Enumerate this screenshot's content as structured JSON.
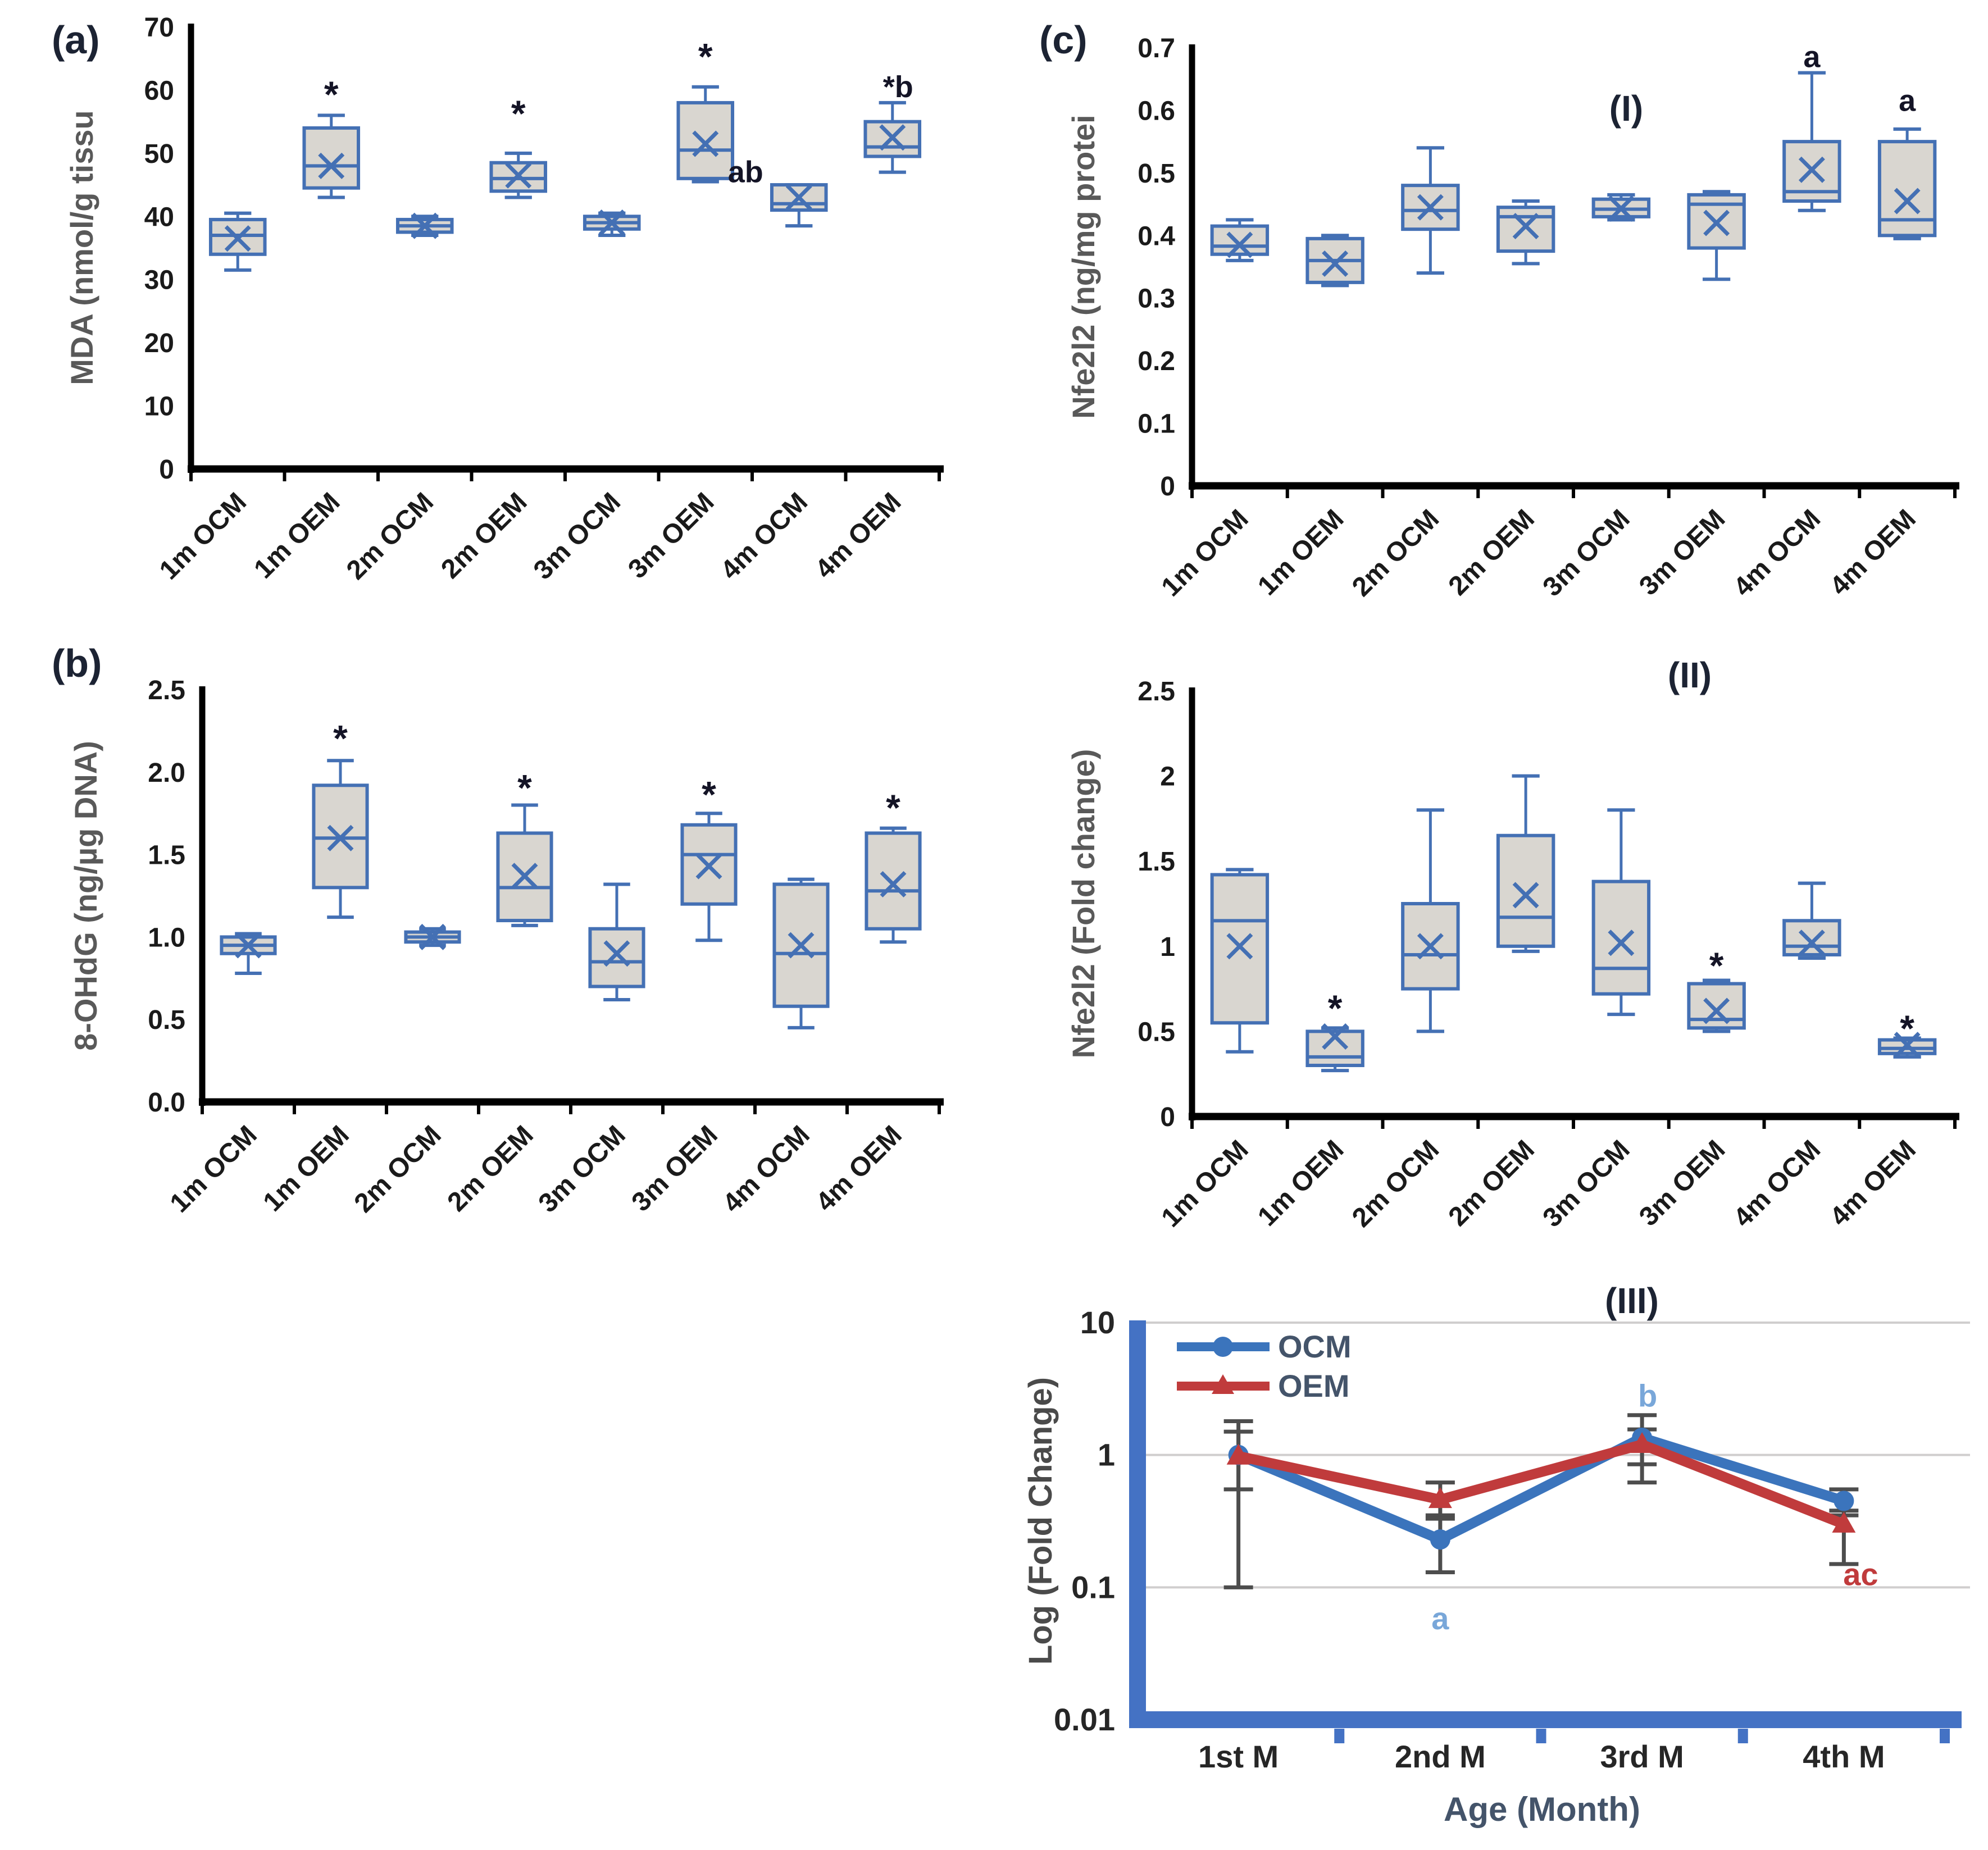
{
  "figure_title": "Oxidative stress and Nfe2l2 box plot figure",
  "colors": {
    "box_border": "#4470b4",
    "box_fill": "#d9d6d0",
    "axis": "#000000",
    "tick_text": "#1a1a1a",
    "axis_title": "#595959",
    "star": "#141426",
    "panel_letter": "#1c2333",
    "grid": "#d0cece",
    "log_axis": "#4472c4",
    "log_ylabel": "#4a4a4a",
    "error_bar": "#4d4d4d",
    "legend_text": "#44546a",
    "ocm_blue": "#3b74bc",
    "oem_red": "#c03b3c",
    "light_blue_annotation": "#79a7d9"
  },
  "chart_data": [
    {
      "id": "a",
      "type": "box",
      "panel_label": "(a)",
      "title": "",
      "ylabel": "MDA (nmol/g tissu",
      "ylim": [
        0,
        70
      ],
      "ytick_values": [
        0,
        10,
        20,
        30,
        40,
        50,
        60,
        70
      ],
      "ytick_labels": [
        "0",
        "10",
        "20",
        "30",
        "40",
        "50",
        "60",
        "70"
      ],
      "categories": [
        "1m OCM",
        "1m OEM",
        "2m OCM",
        "2m OEM",
        "3m OCM",
        "3m OEM",
        "4m OCM",
        "4m OEM"
      ],
      "boxes": [
        {
          "category": "1m OCM",
          "low": 31.5,
          "q1": 34,
          "median": 37,
          "q3": 39.5,
          "high": 40.5,
          "mean": 36.5
        },
        {
          "category": "1m OEM",
          "low": 43,
          "q1": 44.5,
          "median": 48,
          "q3": 54,
          "high": 56,
          "mean": 48,
          "star": 61
        },
        {
          "category": "2m OCM",
          "low": 37,
          "q1": 37.5,
          "median": 38.5,
          "q3": 39.5,
          "high": 40,
          "mean": 38.5
        },
        {
          "category": "2m OEM",
          "low": 43,
          "q1": 44,
          "median": 46,
          "q3": 48.5,
          "high": 50,
          "mean": 46.5,
          "star": 58
        },
        {
          "category": "3m OCM",
          "low": 37,
          "q1": 38,
          "median": 39,
          "q3": 40,
          "high": 40.5,
          "mean": 39
        },
        {
          "category": "3m OEM",
          "low": 45.5,
          "q1": 46,
          "median": 50.5,
          "q3": 58,
          "high": 60.5,
          "mean": 51.5,
          "star": 67
        },
        {
          "category": "4m OCM",
          "low": 38.5,
          "q1": 41,
          "median": 42,
          "q3": 45,
          "high": 45,
          "mean": 43,
          "annotation": {
            "text": "ab",
            "value": 47,
            "dx": -95
          }
        },
        {
          "category": "4m OEM",
          "low": 47,
          "q1": 49.5,
          "median": 51,
          "q3": 55,
          "high": 58,
          "mean": 52.5,
          "annotation": {
            "text": "*b",
            "value": 60.5,
            "dx": 10
          }
        }
      ]
    },
    {
      "id": "c",
      "type": "box",
      "panel_label": "(c)",
      "title": "(I)",
      "ylabel": "Nfe2l2 (ng/mg protei",
      "ylim": [
        0,
        0.7
      ],
      "ytick_values": [
        0,
        0.1,
        0.2,
        0.3,
        0.4,
        0.5,
        0.6,
        0.7
      ],
      "ytick_labels": [
        "0",
        "0.1",
        "0.2",
        "0.3",
        "0.4",
        "0.5",
        "0.6",
        "0.7"
      ],
      "categories": [
        "1m OCM",
        "1m OEM",
        "2m OCM",
        "2m OEM",
        "3m OCM",
        "3m OEM",
        "4m OCM",
        "4m OEM"
      ],
      "boxes": [
        {
          "category": "1m OCM",
          "low": 0.36,
          "q1": 0.37,
          "median": 0.383,
          "q3": 0.415,
          "high": 0.425,
          "mean": 0.385
        },
        {
          "category": "1m OEM",
          "low": 0.32,
          "q1": 0.325,
          "median": 0.36,
          "q3": 0.395,
          "high": 0.4,
          "mean": 0.355
        },
        {
          "category": "2m OCM",
          "low": 0.34,
          "q1": 0.41,
          "median": 0.44,
          "q3": 0.48,
          "high": 0.54,
          "mean": 0.445
        },
        {
          "category": "2m OEM",
          "low": 0.355,
          "q1": 0.375,
          "median": 0.43,
          "q3": 0.445,
          "high": 0.455,
          "mean": 0.415
        },
        {
          "category": "3m OCM",
          "low": 0.425,
          "q1": 0.43,
          "median": 0.442,
          "q3": 0.458,
          "high": 0.465,
          "mean": 0.443
        },
        {
          "category": "3m OEM",
          "low": 0.33,
          "q1": 0.38,
          "median": 0.45,
          "q3": 0.465,
          "high": 0.47,
          "mean": 0.42
        },
        {
          "category": "4m OCM",
          "low": 0.44,
          "q1": 0.455,
          "median": 0.47,
          "q3": 0.55,
          "high": 0.66,
          "mean": 0.505,
          "annotation": {
            "text": "a",
            "value": 0.685,
            "dx": 0
          }
        },
        {
          "category": "4m OEM",
          "low": 0.395,
          "q1": 0.4,
          "median": 0.425,
          "q3": 0.55,
          "high": 0.57,
          "mean": 0.455,
          "annotation": {
            "text": "a",
            "value": 0.615,
            "dx": 0
          }
        }
      ]
    },
    {
      "id": "b",
      "type": "box",
      "panel_label": "(b)",
      "title": "",
      "ylabel": "8-OHdG (ng/µg DNA)",
      "ylim": [
        0,
        2.5
      ],
      "ytick_values": [
        0,
        0.5,
        1.0,
        1.5,
        2.0,
        2.5
      ],
      "ytick_labels": [
        "0.0",
        "0.5",
        "1.0",
        "1.5",
        "2.0",
        "2.5"
      ],
      "categories": [
        "1m OCM",
        "1m OEM",
        "2m OCM",
        "2m OEM",
        "3m OCM",
        "3m OEM",
        "4m OCM",
        "4m OEM"
      ],
      "boxes": [
        {
          "category": "1m OCM",
          "low": 0.78,
          "q1": 0.9,
          "median": 0.95,
          "q3": 1.0,
          "high": 1.02,
          "mean": 0.95
        },
        {
          "category": "1m OEM",
          "low": 1.12,
          "q1": 1.3,
          "median": 1.6,
          "q3": 1.92,
          "high": 2.07,
          "mean": 1.6,
          "star": 2.27
        },
        {
          "category": "2m OCM",
          "low": 0.95,
          "q1": 0.97,
          "median": 1.0,
          "q3": 1.03,
          "high": 1.05,
          "mean": 1.0
        },
        {
          "category": "2m OEM",
          "low": 1.07,
          "q1": 1.1,
          "median": 1.3,
          "q3": 1.63,
          "high": 1.8,
          "mean": 1.37,
          "star": 1.97
        },
        {
          "category": "3m OCM",
          "low": 0.62,
          "q1": 0.7,
          "median": 0.85,
          "q3": 1.05,
          "high": 1.32,
          "mean": 0.9
        },
        {
          "category": "3m OEM",
          "low": 0.98,
          "q1": 1.2,
          "median": 1.5,
          "q3": 1.68,
          "high": 1.75,
          "mean": 1.43,
          "star": 1.93
        },
        {
          "category": "4m OCM",
          "low": 0.45,
          "q1": 0.58,
          "median": 0.9,
          "q3": 1.32,
          "high": 1.35,
          "mean": 0.95
        },
        {
          "category": "4m OEM",
          "low": 0.97,
          "q1": 1.05,
          "median": 1.28,
          "q3": 1.63,
          "high": 1.66,
          "mean": 1.32,
          "star": 1.85
        }
      ]
    },
    {
      "id": "II",
      "type": "box",
      "panel_label": "",
      "title": "(II)",
      "ylabel": "Nfe2l2 (Fold change)",
      "ylim": [
        0,
        2.5
      ],
      "ytick_values": [
        0,
        0.5,
        1.0,
        1.5,
        2.0,
        2.5
      ],
      "ytick_labels": [
        "0",
        "0.5",
        "1",
        "1.5",
        "2",
        "2.5"
      ],
      "categories": [
        "1m OCM",
        "1m OEM",
        "2m OCM",
        "2m OEM",
        "3m OCM",
        "3m OEM",
        "4m OCM",
        "4m OEM"
      ],
      "boxes": [
        {
          "category": "1m OCM",
          "low": 0.38,
          "q1": 0.55,
          "median": 1.15,
          "q3": 1.42,
          "high": 1.45,
          "mean": 1.0
        },
        {
          "category": "1m OEM",
          "low": 0.27,
          "q1": 0.3,
          "median": 0.35,
          "q3": 0.5,
          "high": 0.52,
          "mean": 0.47,
          "star": 0.7
        },
        {
          "category": "2m OCM",
          "low": 0.5,
          "q1": 0.75,
          "median": 0.95,
          "q3": 1.25,
          "high": 1.8,
          "mean": 1.0
        },
        {
          "category": "2m OEM",
          "low": 0.97,
          "q1": 1.0,
          "median": 1.17,
          "q3": 1.65,
          "high": 2.0,
          "mean": 1.3
        },
        {
          "category": "3m OCM",
          "low": 0.6,
          "q1": 0.72,
          "median": 0.87,
          "q3": 1.38,
          "high": 1.8,
          "mean": 1.02
        },
        {
          "category": "3m OEM",
          "low": 0.5,
          "q1": 0.52,
          "median": 0.57,
          "q3": 0.78,
          "high": 0.8,
          "mean": 0.62,
          "star": 0.95
        },
        {
          "category": "4m OCM",
          "low": 0.93,
          "q1": 0.95,
          "median": 1.0,
          "q3": 1.15,
          "high": 1.37,
          "mean": 1.02
        },
        {
          "category": "4m OEM",
          "low": 0.35,
          "q1": 0.37,
          "median": 0.4,
          "q3": 0.45,
          "high": 0.46,
          "mean": 0.42,
          "star": 0.58
        }
      ]
    },
    {
      "id": "III",
      "type": "line",
      "panel_label": "",
      "title": "(III)",
      "ylabel": "Log (Fold Change)",
      "xlabel": "Age (Month)",
      "scale": "log",
      "ylim": [
        0.01,
        10
      ],
      "gridline_values": [
        10,
        1,
        0.1
      ],
      "ytick_values": [
        10,
        1,
        0.1,
        0.01
      ],
      "ytick_labels": [
        "10",
        "1",
        "0.1",
        "0.01"
      ],
      "categories": [
        "1st M",
        "2nd M",
        "3rd M",
        "4th M"
      ],
      "series": [
        {
          "name": "OCM",
          "marker": "circle",
          "color": "#3b74bc",
          "values": [
            1.0,
            0.23,
            1.35,
            0.45
          ],
          "err_low": [
            0.1,
            0.13,
            0.85,
            0.35
          ],
          "err_high": [
            1.8,
            0.35,
            2.0,
            0.55
          ]
        },
        {
          "name": "OEM",
          "marker": "triangle",
          "color": "#c03b3c",
          "values": [
            0.98,
            0.46,
            1.2,
            0.3
          ],
          "err_low": [
            0.55,
            0.33,
            0.62,
            0.15
          ],
          "err_high": [
            1.5,
            0.62,
            1.56,
            0.38
          ]
        }
      ],
      "annotations": [
        {
          "text": "b",
          "cat": 2,
          "value": 2.8,
          "color": "#79a7d9",
          "dx": 10
        },
        {
          "text": "a",
          "cat": 1,
          "value": 0.058,
          "color": "#79a7d9",
          "dx": 0
        },
        {
          "text": "ac",
          "cat": 3,
          "value": 0.125,
          "color": "#c03b3c",
          "dx": 30
        }
      ],
      "legend": [
        "OCM",
        "OEM"
      ]
    }
  ]
}
